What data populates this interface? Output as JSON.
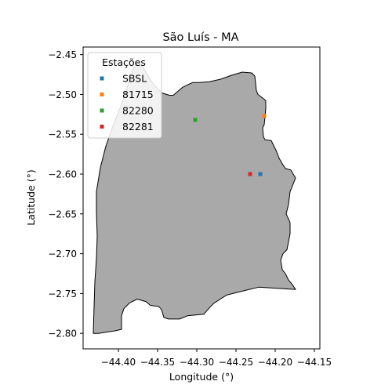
{
  "chart_data": {
    "type": "scatter",
    "title": "São Luís - MA",
    "xlabel": "Longitude (°)",
    "ylabel": "Latitude (°)",
    "xlim": [
      -44.445,
      -44.143
    ],
    "ylim": [
      -2.8195,
      -2.4405
    ],
    "xticks": [
      -44.4,
      -44.35,
      -44.3,
      -44.25,
      -44.2,
      -44.15
    ],
    "xtick_labels": [
      "−44.40",
      "−44.35",
      "−44.30",
      "−44.25",
      "−44.20",
      "−44.15"
    ],
    "yticks": [
      -2.45,
      -2.5,
      -2.55,
      -2.6,
      -2.65,
      -2.7,
      -2.75,
      -2.8
    ],
    "ytick_labels": [
      "−2.45",
      "−2.50",
      "−2.55",
      "−2.60",
      "−2.65",
      "−2.70",
      "−2.75",
      "−2.80"
    ],
    "grid": false,
    "legend": {
      "title": "Estações",
      "placement": "upper-left"
    },
    "region": {
      "fill": "#a9a9a9",
      "stroke": "#000000",
      "boundary": [
        [
          -44.432,
          -2.8
        ],
        [
          -44.431,
          -2.766
        ],
        [
          -44.43,
          -2.735
        ],
        [
          -44.428,
          -2.706
        ],
        [
          -44.427,
          -2.678
        ],
        [
          -44.428,
          -2.648
        ],
        [
          -44.428,
          -2.622
        ],
        [
          -44.423,
          -2.592
        ],
        [
          -44.416,
          -2.565
        ],
        [
          -44.407,
          -2.54
        ],
        [
          -44.397,
          -2.515
        ],
        [
          -44.389,
          -2.492
        ],
        [
          -44.382,
          -2.47
        ],
        [
          -44.376,
          -2.459
        ],
        [
          -44.366,
          -2.47
        ],
        [
          -44.357,
          -2.485
        ],
        [
          -44.345,
          -2.498
        ],
        [
          -44.335,
          -2.501
        ],
        [
          -44.33,
          -2.501
        ],
        [
          -44.324,
          -2.496
        ],
        [
          -44.318,
          -2.491
        ],
        [
          -44.312,
          -2.488
        ],
        [
          -44.305,
          -2.485
        ],
        [
          -44.297,
          -2.485
        ],
        [
          -44.284,
          -2.484
        ],
        [
          -44.27,
          -2.481
        ],
        [
          -44.256,
          -2.476
        ],
        [
          -44.242,
          -2.472
        ],
        [
          -44.23,
          -2.473
        ],
        [
          -44.226,
          -2.477
        ],
        [
          -44.225,
          -2.486
        ],
        [
          -44.224,
          -2.495
        ],
        [
          -44.222,
          -2.5
        ],
        [
          -44.218,
          -2.503
        ],
        [
          -44.214,
          -2.506
        ],
        [
          -44.212,
          -2.508
        ],
        [
          -44.212,
          -2.518
        ],
        [
          -44.213,
          -2.528
        ],
        [
          -44.214,
          -2.538
        ],
        [
          -44.216,
          -2.542
        ],
        [
          -44.215,
          -2.553
        ],
        [
          -44.213,
          -2.557
        ],
        [
          -44.205,
          -2.558
        ],
        [
          -44.199,
          -2.57
        ],
        [
          -44.195,
          -2.58
        ],
        [
          -44.191,
          -2.587
        ],
        [
          -44.187,
          -2.593
        ],
        [
          -44.18,
          -2.595
        ],
        [
          -44.174,
          -2.605
        ],
        [
          -44.181,
          -2.622
        ],
        [
          -44.183,
          -2.638
        ],
        [
          -44.186,
          -2.65
        ],
        [
          -44.181,
          -2.661
        ],
        [
          -44.181,
          -2.675
        ],
        [
          -44.185,
          -2.695
        ],
        [
          -44.19,
          -2.7
        ],
        [
          -44.193,
          -2.708
        ],
        [
          -44.191,
          -2.72
        ],
        [
          -44.187,
          -2.725
        ],
        [
          -44.183,
          -2.733
        ],
        [
          -44.178,
          -2.739
        ],
        [
          -44.174,
          -2.745
        ],
        [
          -44.221,
          -2.742
        ],
        [
          -44.242,
          -2.747
        ],
        [
          -44.262,
          -2.752
        ],
        [
          -44.278,
          -2.762
        ],
        [
          -44.284,
          -2.768
        ],
        [
          -44.291,
          -2.776
        ],
        [
          -44.312,
          -2.778
        ],
        [
          -44.322,
          -2.782
        ],
        [
          -44.336,
          -2.782
        ],
        [
          -44.342,
          -2.78
        ],
        [
          -44.345,
          -2.77
        ],
        [
          -44.349,
          -2.766
        ],
        [
          -44.359,
          -2.765
        ],
        [
          -44.365,
          -2.76
        ],
        [
          -44.376,
          -2.757
        ],
        [
          -44.386,
          -2.762
        ],
        [
          -44.393,
          -2.769
        ],
        [
          -44.396,
          -2.778
        ],
        [
          -44.396,
          -2.795
        ],
        [
          -44.405,
          -2.797
        ],
        [
          -44.413,
          -2.798
        ],
        [
          -44.425,
          -2.8
        ]
      ]
    },
    "series": [
      {
        "name": "SBSL",
        "color": "#1f77b4",
        "x": [
          -44.219
        ],
        "y": [
          -2.6
        ]
      },
      {
        "name": "81715",
        "color": "#ff7f0e",
        "x": [
          -44.214
        ],
        "y": [
          -2.527
        ]
      },
      {
        "name": "82280",
        "color": "#2ca02c",
        "x": [
          -44.302
        ],
        "y": [
          -2.532
        ]
      },
      {
        "name": "82281",
        "color": "#d62728",
        "x": [
          -44.232
        ],
        "y": [
          -2.6
        ]
      }
    ]
  }
}
